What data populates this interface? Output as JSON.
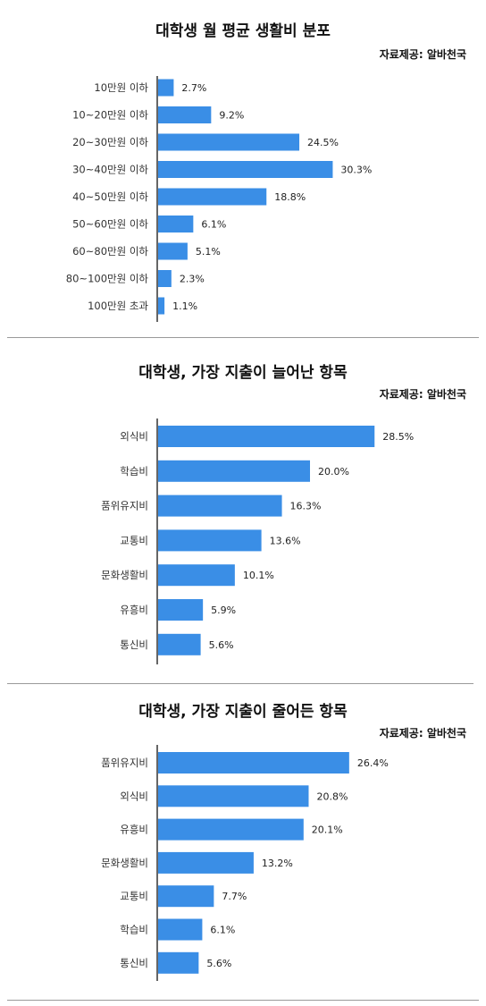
{
  "charts": [
    {
      "type": "bar",
      "title": "대학생 월 평균 생활비 분포",
      "source": "자료제공: 알바천국",
      "categories": [
        "10만원 이하",
        "10~20만원 이하",
        "20~30만원 이하",
        "30~40만원 이하",
        "40~50만원 이하",
        "50~60만원 이하",
        "60~80만원 이하",
        "80~100만원 이하",
        "100만원 초과"
      ],
      "values": [
        2.7,
        9.2,
        24.5,
        30.3,
        18.8,
        6.1,
        5.1,
        2.3,
        1.1
      ],
      "value_labels": [
        "2.7%",
        "9.2%",
        "24.5%",
        "30.3%",
        "18.8%",
        "6.1%",
        "5.1%",
        "2.3%",
        "1.1%"
      ],
      "color": "#3a8ee6"
    },
    {
      "type": "bar",
      "title": "대학생, 가장 지출이 늘어난 항목",
      "source": "자료제공: 알바천국",
      "categories": [
        "외식비",
        "학습비",
        "품위유지비",
        "교통비",
        "문화생활비",
        "유흥비",
        "통신비"
      ],
      "values": [
        28.5,
        20.0,
        16.3,
        13.6,
        10.1,
        5.9,
        5.6
      ],
      "value_labels": [
        "28.5%",
        "20.0%",
        "16.3%",
        "13.6%",
        "10.1%",
        "5.9%",
        "5.6%"
      ],
      "color": "#3a8ee6"
    },
    {
      "type": "bar",
      "title": "대학생, 가장 지출이 줄어든 항목",
      "source": "자료제공: 알바천국",
      "categories": [
        "품위유지비",
        "외식비",
        "유흥비",
        "문화생활비",
        "교통비",
        "학습비",
        "통신비"
      ],
      "values": [
        26.4,
        20.8,
        20.1,
        13.2,
        7.7,
        6.1,
        5.6
      ],
      "value_labels": [
        "26.4%",
        "20.8%",
        "20.1%",
        "13.2%",
        "7.7%",
        "6.1%",
        "5.6%"
      ],
      "color": "#3a8ee6"
    }
  ],
  "chart_data": [
    {
      "type": "bar",
      "title": "대학생 월 평균 생활비 분포",
      "categories": [
        "10만원 이하",
        "10~20만원 이하",
        "20~30만원 이하",
        "30~40만원 이하",
        "40~50만원 이하",
        "50~60만원 이하",
        "60~80만원 이하",
        "80~100만원 이하",
        "100만원 초과"
      ],
      "values": [
        2.7,
        9.2,
        24.5,
        30.3,
        18.8,
        6.1,
        5.1,
        2.3,
        1.1
      ],
      "annotation": "자료제공: 알바천국",
      "orientation": "horizontal"
    },
    {
      "type": "bar",
      "title": "대학생, 가장 지출이 늘어난 항목",
      "categories": [
        "외식비",
        "학습비",
        "품위유지비",
        "교통비",
        "문화생활비",
        "유흥비",
        "통신비"
      ],
      "values": [
        28.5,
        20.0,
        16.3,
        13.6,
        10.1,
        5.9,
        5.6
      ],
      "annotation": "자료제공: 알바천국",
      "orientation": "horizontal"
    },
    {
      "type": "bar",
      "title": "대학생, 가장 지출이 줄어든 항목",
      "categories": [
        "품위유지비",
        "외식비",
        "유흥비",
        "문화생활비",
        "교통비",
        "학습비",
        "통신비"
      ],
      "values": [
        26.4,
        20.8,
        20.1,
        13.2,
        7.7,
        6.1,
        5.6
      ],
      "annotation": "자료제공: 알바천국",
      "orientation": "horizontal"
    }
  ]
}
